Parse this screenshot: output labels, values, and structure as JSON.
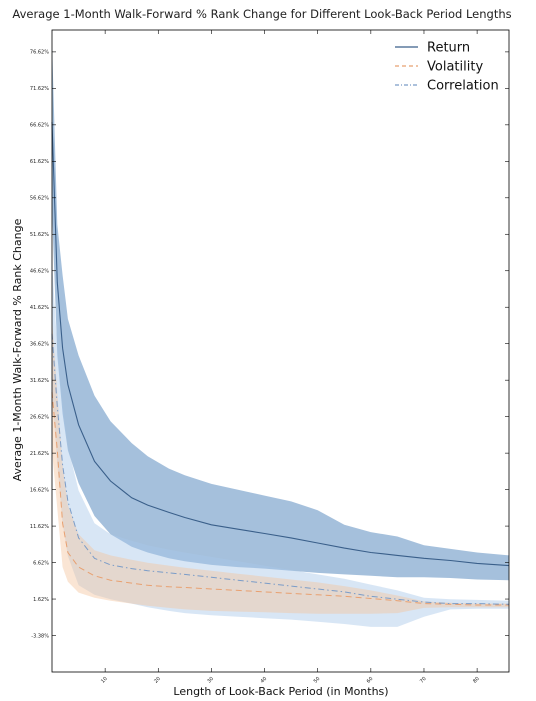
{
  "chart_data": {
    "type": "line",
    "title": "Average 1-Month Walk-Forward % Rank Change for Different Look-Back Period Lengths",
    "xlabel": "Length of Look-Back Period (in Months)",
    "ylabel": "Average 1-Month Walk-Forward % Rank Change",
    "xlim": [
      0,
      86
    ],
    "ylim": [
      -8.38,
      79.62
    ],
    "y_ticks": [
      -3.38,
      1.62,
      6.62,
      11.62,
      16.62,
      21.62,
      26.62,
      31.62,
      36.62,
      41.62,
      46.62,
      51.62,
      56.62,
      61.62,
      66.62,
      71.62,
      76.62
    ],
    "y_tick_labels": [
      "-3.38%",
      "1.62%",
      "6.62%",
      "11.62%",
      "16.62%",
      "21.62%",
      "26.62%",
      "31.62%",
      "36.62%",
      "41.62%",
      "46.62%",
      "51.62%",
      "56.62%",
      "61.62%",
      "66.62%",
      "71.62%",
      "76.62%"
    ],
    "x_ticks": [
      10,
      20,
      30,
      40,
      50,
      60,
      70,
      80
    ],
    "x_tick_labels": [
      "10",
      "20",
      "30",
      "40",
      "50",
      "60",
      "70",
      "80"
    ],
    "grid": false,
    "legend_position": "top-right",
    "x": [
      0,
      1,
      2,
      3,
      5,
      8,
      11,
      15,
      18,
      22,
      25,
      30,
      35,
      40,
      45,
      50,
      55,
      60,
      65,
      70,
      75,
      80,
      86
    ],
    "series": [
      {
        "name": "Return",
        "color": "#3a5f8a",
        "band_color": "#5b8cc0",
        "dash": "solid",
        "values": [
          67,
          45,
          36,
          31,
          25.5,
          20.5,
          17.8,
          15.5,
          14.5,
          13.5,
          12.8,
          11.8,
          11.2,
          10.6,
          10.0,
          9.3,
          8.6,
          8.0,
          7.6,
          7.2,
          6.9,
          6.5,
          6.2
        ],
        "upper": [
          78,
          53,
          46,
          40,
          35,
          29.5,
          26,
          23,
          21.2,
          19.5,
          18.6,
          17.4,
          16.6,
          15.8,
          15.0,
          13.8,
          11.8,
          10.8,
          10.2,
          9.0,
          8.5,
          8.0,
          7.6
        ],
        "lower": [
          55,
          35,
          27,
          22,
          17.5,
          13.0,
          10.5,
          8.8,
          8.0,
          7.2,
          6.8,
          6.3,
          6.0,
          5.8,
          5.5,
          5.2,
          5.0,
          4.8,
          4.6,
          4.6,
          4.5,
          4.3,
          4.2
        ]
      },
      {
        "name": "Volatility",
        "color": "#e8a070",
        "band_color": "#f5c6a0",
        "dash": "dashed",
        "values": [
          30,
          22,
          12,
          8,
          6,
          4.8,
          4.2,
          3.8,
          3.5,
          3.3,
          3.2,
          3.0,
          2.8,
          2.6,
          2.4,
          2.2,
          2.0,
          1.7,
          1.4,
          1.0,
          0.9,
          0.8,
          0.8
        ],
        "upper": [
          40,
          30,
          20,
          14.5,
          10.5,
          8.3,
          7.6,
          7.0,
          6.6,
          6.2,
          5.9,
          5.5,
          5.1,
          4.7,
          4.3,
          3.9,
          3.4,
          2.8,
          2.1,
          1.3,
          1.1,
          1.0,
          1.0
        ],
        "lower": [
          22,
          14,
          6,
          4,
          2.5,
          1.8,
          1.4,
          1.0,
          0.7,
          0.4,
          0.2,
          0.0,
          -0.1,
          -0.2,
          -0.3,
          -0.4,
          -0.4,
          -0.4,
          -0.3,
          0.4,
          0.5,
          0.5,
          0.5
        ]
      },
      {
        "name": "Correlation",
        "color": "#7a9cc8",
        "band_color": "#a9c7e8",
        "dash": "dashdot",
        "values": [
          38,
          28,
          20,
          15,
          10,
          7.2,
          6.3,
          5.8,
          5.5,
          5.2,
          5.0,
          4.6,
          4.2,
          3.8,
          3.4,
          3.0,
          2.6,
          2.0,
          1.6,
          1.2,
          1.0,
          1.0,
          0.9
        ],
        "upper": [
          48,
          36,
          28,
          22.5,
          16.5,
          12.0,
          10.5,
          9.6,
          9.0,
          8.4,
          8.0,
          7.4,
          6.8,
          6.2,
          5.6,
          5.0,
          4.4,
          3.6,
          2.8,
          1.8,
          1.6,
          1.5,
          1.4
        ],
        "lower": [
          30,
          20,
          12,
          7.5,
          3.5,
          2.2,
          1.6,
          1.0,
          0.5,
          0.0,
          -0.3,
          -0.6,
          -0.8,
          -1.0,
          -1.2,
          -1.5,
          -1.8,
          -2.2,
          -2.2,
          -0.8,
          0.2,
          0.3,
          0.3
        ]
      }
    ]
  }
}
